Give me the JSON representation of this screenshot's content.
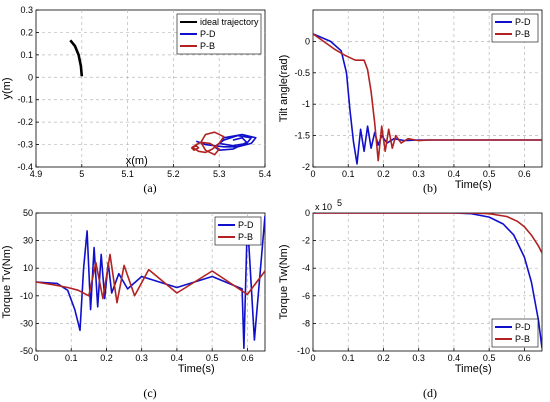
{
  "chart_data": [
    {
      "type": "line",
      "panel_label": "(a)",
      "xlabel": "x(m)",
      "ylabel": "y(m)",
      "xlim": [
        4.9,
        5.4
      ],
      "ylim": [
        -0.4,
        0.3
      ],
      "xticks": [
        "4.9",
        "5",
        "5.1",
        "5.2",
        "5.3",
        "5.4"
      ],
      "xtick_values": [
        4.9,
        5.0,
        5.1,
        5.2,
        5.3,
        5.4
      ],
      "yticks": [
        "0.3",
        "0.2",
        "0.1",
        "0",
        "-0.1",
        "-0.2",
        "-0.3",
        "-0.4"
      ],
      "ytick_values": [
        0.3,
        0.2,
        0.1,
        0,
        -0.1,
        -0.2,
        -0.3,
        -0.4
      ],
      "grid": true,
      "legend": "top-right",
      "series": [
        {
          "name": "ideal trajectory",
          "color": "#000000",
          "x": [
            4.975,
            4.985,
            4.993,
            4.998,
            5.0
          ],
          "y": [
            0.165,
            0.14,
            0.1,
            0.05,
            0.005
          ]
        },
        {
          "name": "P-D",
          "color": "#1010cc",
          "x": [
            5.25,
            5.27,
            5.31,
            5.34,
            5.37,
            5.38,
            5.35,
            5.31,
            5.3,
            5.33,
            5.36,
            5.37,
            5.34,
            5.31,
            5.29,
            5.3,
            5.33,
            5.36,
            5.35,
            5.33
          ],
          "y": [
            -0.285,
            -0.3,
            -0.31,
            -0.31,
            -0.295,
            -0.27,
            -0.255,
            -0.27,
            -0.295,
            -0.305,
            -0.295,
            -0.27,
            -0.26,
            -0.28,
            -0.31,
            -0.325,
            -0.32,
            -0.29,
            -0.27,
            -0.28
          ]
        },
        {
          "name": "P-B",
          "color": "#b22222",
          "x": [
            5.24,
            5.255,
            5.27,
            5.285,
            5.3,
            5.31,
            5.29,
            5.27,
            5.26,
            5.27,
            5.29,
            5.3,
            5.28,
            5.26,
            5.25,
            5.24,
            5.245,
            5.255,
            5.25,
            5.245
          ],
          "y": [
            -0.31,
            -0.33,
            -0.335,
            -0.32,
            -0.295,
            -0.265,
            -0.245,
            -0.255,
            -0.29,
            -0.325,
            -0.345,
            -0.32,
            -0.295,
            -0.29,
            -0.3,
            -0.315,
            -0.325,
            -0.315,
            -0.305,
            -0.31
          ]
        }
      ]
    },
    {
      "type": "line",
      "panel_label": "(b)",
      "xlabel": "Time(s)",
      "ylabel": "Tilt angle(rad)",
      "xlim": [
        0,
        0.65
      ],
      "ylim": [
        -2,
        0.5
      ],
      "xticks": [
        "0",
        "0.1",
        "0.2",
        "0.3",
        "0.4",
        "0.5",
        "0.6"
      ],
      "xtick_values": [
        0,
        0.1,
        0.2,
        0.3,
        0.4,
        0.5,
        0.6
      ],
      "yticks": [
        "0",
        "-0.5",
        "-1",
        "-1.5",
        "-2"
      ],
      "ytick_values": [
        0,
        -0.5,
        -1,
        -1.5,
        -2
      ],
      "grid": true,
      "legend": "top-right",
      "series": [
        {
          "name": "P-D",
          "color": "#1010cc",
          "x": [
            0,
            0.05,
            0.08,
            0.095,
            0.105,
            0.115,
            0.125,
            0.135,
            0.145,
            0.155,
            0.165,
            0.175,
            0.185,
            0.195,
            0.21,
            0.23,
            0.26,
            0.3,
            0.35,
            0.65
          ],
          "y": [
            0.12,
            0.0,
            -0.15,
            -0.5,
            -1.1,
            -1.6,
            -1.95,
            -1.4,
            -1.75,
            -1.35,
            -1.7,
            -1.45,
            -1.65,
            -1.5,
            -1.62,
            -1.55,
            -1.58,
            -1.57,
            -1.57,
            -1.57
          ]
        },
        {
          "name": "P-B",
          "color": "#b22222",
          "x": [
            0,
            0.03,
            0.06,
            0.09,
            0.12,
            0.145,
            0.155,
            0.165,
            0.175,
            0.185,
            0.195,
            0.205,
            0.215,
            0.225,
            0.235,
            0.25,
            0.27,
            0.3,
            0.33,
            0.65
          ],
          "y": [
            0.12,
            0.0,
            -0.12,
            -0.22,
            -0.3,
            -0.3,
            -0.45,
            -0.8,
            -1.3,
            -1.9,
            -1.35,
            -1.75,
            -1.4,
            -1.7,
            -1.5,
            -1.62,
            -1.55,
            -1.58,
            -1.57,
            -1.57
          ]
        }
      ]
    },
    {
      "type": "line",
      "panel_label": "(c)",
      "xlabel": "Time(s)",
      "ylabel": "Torque Tv(Nm)",
      "xlim": [
        0,
        0.65
      ],
      "ylim": [
        -50,
        50
      ],
      "xticks": [
        "0",
        "0.1",
        "0.2",
        "0.3",
        "0.4",
        "0.5",
        "0.6"
      ],
      "xtick_values": [
        0,
        0.1,
        0.2,
        0.3,
        0.4,
        0.5,
        0.6
      ],
      "yticks": [
        "50",
        "30",
        "10",
        "-10",
        "-30",
        "-50"
      ],
      "ytick_values": [
        50,
        30,
        10,
        -10,
        -30,
        -50
      ],
      "grid": true,
      "legend": "top-right",
      "series": [
        {
          "name": "P-D",
          "color": "#1010cc",
          "x": [
            0,
            0.06,
            0.09,
            0.11,
            0.125,
            0.135,
            0.145,
            0.155,
            0.165,
            0.175,
            0.185,
            0.195,
            0.205,
            0.215,
            0.235,
            0.26,
            0.3,
            0.4,
            0.5,
            0.585,
            0.59,
            0.6,
            0.62,
            0.65
          ],
          "y": [
            0,
            -1,
            -6,
            -20,
            -35,
            10,
            37,
            -20,
            25,
            -18,
            20,
            -12,
            14,
            -8,
            6,
            -5,
            4,
            -4,
            4,
            -5,
            -48,
            45,
            -42,
            48
          ]
        },
        {
          "name": "P-B",
          "color": "#b22222",
          "x": [
            0,
            0.05,
            0.09,
            0.12,
            0.15,
            0.17,
            0.19,
            0.21,
            0.23,
            0.25,
            0.28,
            0.32,
            0.4,
            0.5,
            0.6,
            0.65
          ],
          "y": [
            0,
            -2,
            -4,
            -6,
            -10,
            14,
            -12,
            20,
            -15,
            12,
            -10,
            9,
            -8,
            8,
            -9,
            8
          ]
        }
      ]
    },
    {
      "type": "line",
      "panel_label": "(d)",
      "xlabel": "Time(s)",
      "ylabel": "Torque Tw(Nm)",
      "multiplier": "x 10",
      "multiplier_exp": "5",
      "xlim": [
        0,
        0.65
      ],
      "ylim": [
        -10,
        0
      ],
      "xticks": [
        "0",
        "0.1",
        "0.2",
        "0.3",
        "0.4",
        "0.5",
        "0.6"
      ],
      "xtick_values": [
        0,
        0.1,
        0.2,
        0.3,
        0.4,
        0.5,
        0.6
      ],
      "yticks": [
        "0",
        "-2",
        "-4",
        "-6",
        "-8",
        "-10"
      ],
      "ytick_values": [
        0,
        -2,
        -4,
        -6,
        -8,
        -10
      ],
      "grid": true,
      "legend": "bottom-right",
      "series": [
        {
          "name": "P-D",
          "color": "#1010cc",
          "x": [
            0,
            0.4,
            0.45,
            0.5,
            0.54,
            0.57,
            0.6,
            0.62,
            0.64,
            0.65
          ],
          "y": [
            0,
            0,
            -0.05,
            -0.3,
            -0.8,
            -1.6,
            -3.2,
            -5.0,
            -7.8,
            -9.8
          ]
        },
        {
          "name": "P-B",
          "color": "#b22222",
          "x": [
            0,
            0.45,
            0.5,
            0.55,
            0.58,
            0.6,
            0.62,
            0.64,
            0.65
          ],
          "y": [
            0,
            0,
            -0.05,
            -0.25,
            -0.6,
            -1.0,
            -1.6,
            -2.4,
            -2.9
          ]
        }
      ]
    }
  ]
}
